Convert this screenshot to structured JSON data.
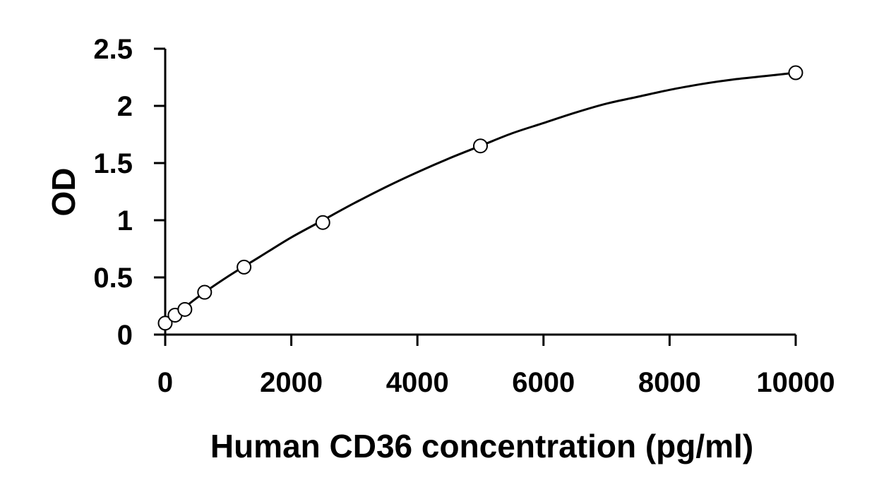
{
  "chart_data": {
    "type": "scatter",
    "title": "",
    "xlabel": "Human CD36 concentration (pg/ml)",
    "ylabel": "OD",
    "xlim": [
      0,
      10000
    ],
    "ylim": [
      0,
      2.5
    ],
    "x_ticks": [
      0,
      2000,
      4000,
      6000,
      8000,
      10000
    ],
    "x_tick_labels": [
      "0",
      "2000",
      "4000",
      "6000",
      "8000",
      "10000"
    ],
    "y_ticks": [
      0,
      0.5,
      1,
      1.5,
      2,
      2.5
    ],
    "y_tick_labels": [
      "0",
      "0.5",
      "1",
      "1.5",
      "2",
      "2.5"
    ],
    "grid": false,
    "legend": "none",
    "marker": "open-circle",
    "colors": {
      "line": "#000000",
      "marker_edge": "#000000",
      "marker_fill": "#ffffff"
    },
    "series": [
      {
        "x": [
          0,
          156,
          312,
          625,
          1250,
          2500,
          5000,
          10000
        ],
        "y": [
          0.1,
          0.17,
          0.22,
          0.37,
          0.59,
          0.98,
          1.65,
          2.29
        ]
      }
    ],
    "fit_curve": {
      "x": [
        0,
        500,
        1000,
        1500,
        2000,
        2500,
        3000,
        3500,
        4000,
        4500,
        5000,
        5500,
        6000,
        6500,
        7000,
        7500,
        8000,
        8500,
        9000,
        9500,
        10000
      ],
      "y": [
        0.1,
        0.32,
        0.51,
        0.68,
        0.85,
        1.0,
        1.15,
        1.29,
        1.42,
        1.54,
        1.65,
        1.76,
        1.85,
        1.94,
        2.02,
        2.08,
        2.14,
        2.19,
        2.23,
        2.26,
        2.29
      ]
    }
  }
}
